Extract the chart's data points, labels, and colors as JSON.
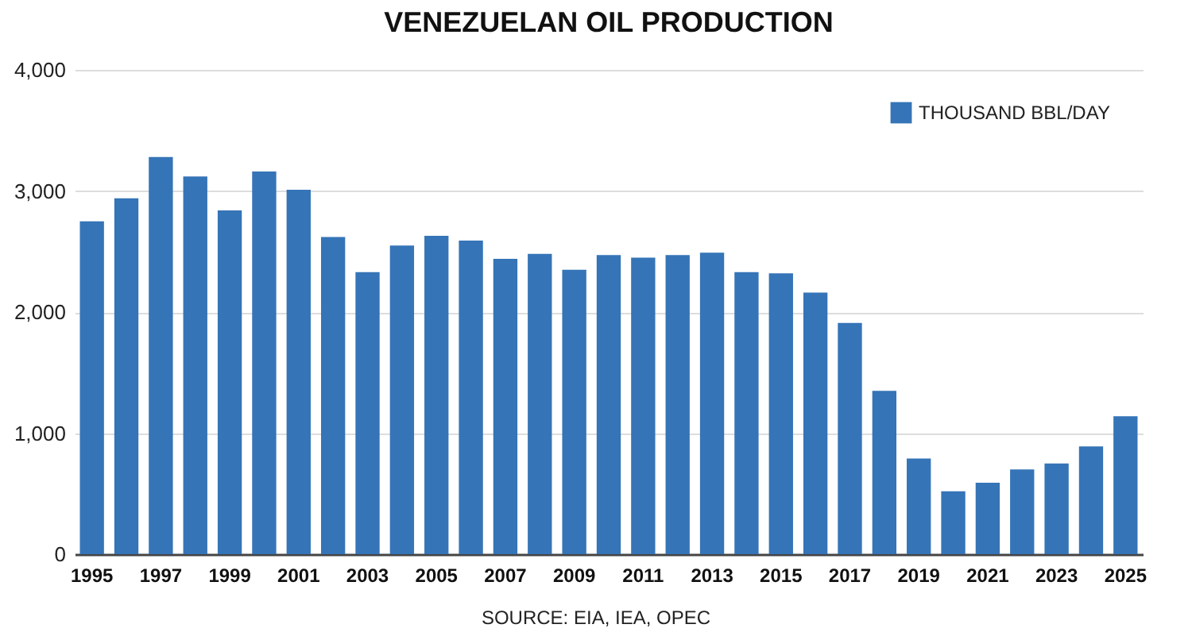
{
  "chart_data": {
    "type": "bar",
    "title": "VENEZUELAN OIL PRODUCTION",
    "categories": [
      "1995",
      null,
      "1997",
      null,
      "1999",
      null,
      "2001",
      null,
      "2003",
      null,
      "2005",
      null,
      "2007",
      null,
      "2009",
      null,
      "2011",
      null,
      "2013",
      null,
      "2015",
      null,
      "2017",
      null,
      "2019",
      null,
      "2021",
      null,
      "2023",
      null,
      "2025"
    ],
    "series": [
      {
        "name": "THOUSAND BBL/DAY",
        "color": "#3574b7",
        "values": [
          2750,
          2940,
          3280,
          3120,
          2840,
          3160,
          3010,
          2620,
          2330,
          2550,
          2630,
          2590,
          2440,
          2480,
          2350,
          2470,
          2450,
          2470,
          2490,
          2330,
          2320,
          2160,
          1910,
          1350,
          790,
          520,
          590,
          700,
          750,
          890,
          1140
        ]
      }
    ],
    "ylim": [
      0,
      4000
    ],
    "yticks": [
      0,
      {
        "value": 1000,
        "label": "1,000"
      },
      {
        "value": 2000,
        "label": "2,000"
      },
      {
        "value": 3000,
        "label": "3,000"
      },
      {
        "value": 4000,
        "label": "4,000"
      }
    ],
    "grid": "y",
    "legend": "top right",
    "annotations": [
      "SOURCE: EIA, IEA, OPEC"
    ]
  }
}
